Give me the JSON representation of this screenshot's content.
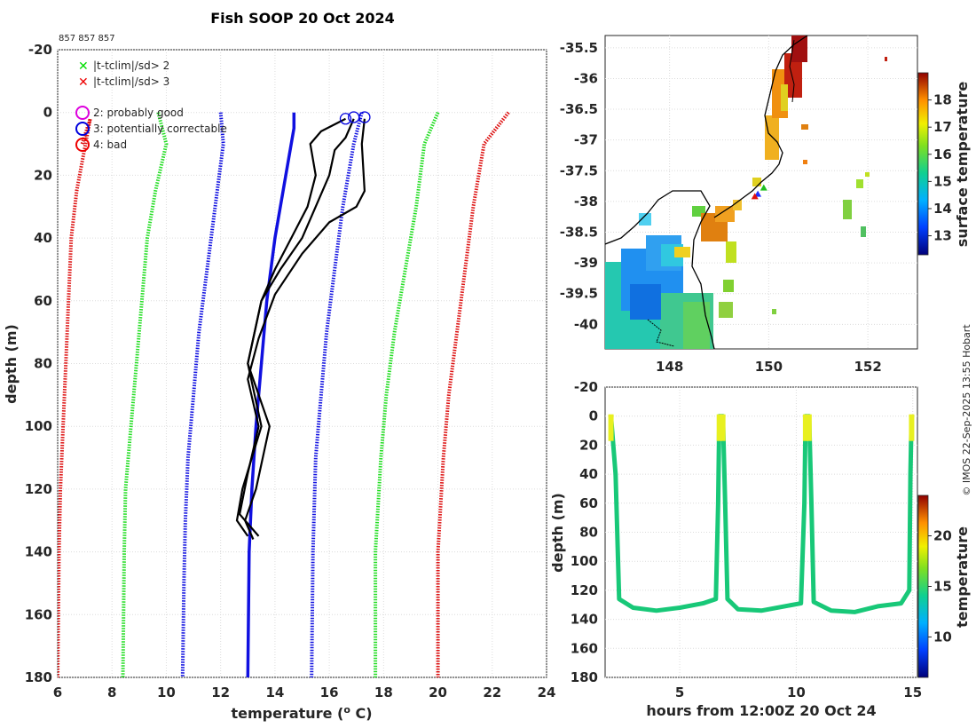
{
  "title": "Fish SOOP 20 Oct 2024",
  "cruise_ids": "857 857 857",
  "credit": "© IMOS 22-Sep-2025 13:55 Hobart",
  "legend": {
    "x_items": [
      {
        "label": "|t-tclim|/sd> 2",
        "color": "#00dd00"
      },
      {
        "label": "|t-tclim|/sd> 3",
        "color": "#ee0000"
      }
    ],
    "o_items": [
      {
        "label": "2: probably good",
        "color": "#dd00dd"
      },
      {
        "label": "3: potentially correctable",
        "color": "#0000dd"
      },
      {
        "label": "4: bad",
        "color": "#ee0000"
      }
    ]
  },
  "colors": {
    "green": "#22dd22",
    "red": "#dd1111",
    "blue": "#1010e0",
    "black": "#000000",
    "grid": "#dcdcdc"
  },
  "chart_data": [
    {
      "type": "line",
      "name": "profile",
      "title": "Fish SOOP 20 Oct 2024",
      "xlabel": "temperature (o C)",
      "ylabel": "depth (m)",
      "xlim": [
        6,
        24
      ],
      "ylim": [
        -20,
        180
      ],
      "y_reversed": true,
      "xticks": [
        6,
        8,
        10,
        12,
        14,
        16,
        18,
        20,
        22,
        24
      ],
      "yticks": [
        -20,
        0,
        20,
        40,
        60,
        80,
        100,
        120,
        140,
        160,
        180
      ],
      "grid": true,
      "series": [
        {
          "name": "clim -3sd",
          "style": "dotted",
          "color": "red",
          "points": [
            [
              6.9,
              10
            ],
            [
              7.2,
              2
            ],
            [
              6.7,
              25
            ],
            [
              6.5,
              40
            ],
            [
              6.4,
              60
            ],
            [
              6.3,
              80
            ],
            [
              6.2,
              100
            ],
            [
              6.1,
              120
            ],
            [
              6.05,
              140
            ],
            [
              6.0,
              180
            ]
          ]
        },
        {
          "name": "clim -2sd",
          "style": "dotted",
          "color": "green",
          "points": [
            [
              9.7,
              0
            ],
            [
              10.0,
              10
            ],
            [
              9.6,
              25
            ],
            [
              9.3,
              40
            ],
            [
              9.1,
              60
            ],
            [
              8.9,
              80
            ],
            [
              8.7,
              100
            ],
            [
              8.5,
              120
            ],
            [
              8.45,
              140
            ],
            [
              8.4,
              180
            ]
          ]
        },
        {
          "name": "clim -1sd",
          "style": "dotted",
          "color": "blue",
          "points": [
            [
              12.0,
              0
            ],
            [
              12.1,
              10
            ],
            [
              11.8,
              30
            ],
            [
              11.5,
              50
            ],
            [
              11.2,
              70
            ],
            [
              11.0,
              90
            ],
            [
              10.8,
              110
            ],
            [
              10.7,
              130
            ],
            [
              10.65,
              150
            ],
            [
              10.6,
              180
            ]
          ]
        },
        {
          "name": "clim mean",
          "style": "solid",
          "color": "blue",
          "points": [
            [
              14.7,
              0
            ],
            [
              14.7,
              5
            ],
            [
              14.4,
              20
            ],
            [
              14.0,
              40
            ],
            [
              13.7,
              60
            ],
            [
              13.5,
              80
            ],
            [
              13.3,
              100
            ],
            [
              13.15,
              120
            ],
            [
              13.05,
              140
            ],
            [
              13.0,
              180
            ]
          ]
        },
        {
          "name": "clim +1sd",
          "style": "dotted",
          "color": "blue",
          "points": [
            [
              17.2,
              0
            ],
            [
              16.9,
              10
            ],
            [
              16.5,
              30
            ],
            [
              16.2,
              50
            ],
            [
              15.9,
              70
            ],
            [
              15.7,
              90
            ],
            [
              15.5,
              110
            ],
            [
              15.4,
              140
            ],
            [
              15.35,
              180
            ]
          ]
        },
        {
          "name": "clim +2sd",
          "style": "dotted",
          "color": "green",
          "points": [
            [
              20.0,
              0
            ],
            [
              19.5,
              10
            ],
            [
              19.2,
              30
            ],
            [
              18.8,
              50
            ],
            [
              18.4,
              70
            ],
            [
              18.1,
              90
            ],
            [
              17.9,
              110
            ],
            [
              17.7,
              140
            ],
            [
              17.7,
              180
            ]
          ]
        },
        {
          "name": "clim +3sd",
          "style": "dotted",
          "color": "red",
          "points": [
            [
              22.6,
              0
            ],
            [
              21.7,
              10
            ],
            [
              21.3,
              30
            ],
            [
              21.0,
              50
            ],
            [
              20.7,
              70
            ],
            [
              20.4,
              90
            ],
            [
              20.2,
              110
            ],
            [
              20.0,
              140
            ],
            [
              20.0,
              180
            ]
          ]
        },
        {
          "name": "cast 1",
          "style": "solid",
          "color": "black",
          "points": [
            [
              16.6,
              2
            ],
            [
              15.7,
              6
            ],
            [
              15.3,
              10
            ],
            [
              15.5,
              20
            ],
            [
              15.2,
              30
            ],
            [
              14.6,
              40
            ],
            [
              14.0,
              50
            ],
            [
              13.5,
              60
            ],
            [
              13.0,
              80
            ],
            [
              13.5,
              100
            ],
            [
              12.8,
              120
            ],
            [
              12.6,
              130
            ],
            [
              13.0,
              135
            ]
          ]
        },
        {
          "name": "cast 2",
          "style": "solid",
          "color": "black",
          "points": [
            [
              16.9,
              2
            ],
            [
              16.6,
              8
            ],
            [
              16.2,
              12
            ],
            [
              16.0,
              20
            ],
            [
              15.5,
              30
            ],
            [
              15.0,
              40
            ],
            [
              14.2,
              50
            ],
            [
              13.5,
              60
            ],
            [
              13.0,
              80
            ],
            [
              13.8,
              100
            ],
            [
              13.3,
              120
            ],
            [
              12.9,
              130
            ],
            [
              13.2,
              136
            ]
          ]
        },
        {
          "name": "cast 3",
          "style": "solid",
          "color": "black",
          "points": [
            [
              17.3,
              2
            ],
            [
              17.2,
              10
            ],
            [
              17.3,
              25
            ],
            [
              17.0,
              30
            ],
            [
              16.0,
              35
            ],
            [
              15.0,
              45
            ],
            [
              14.0,
              58
            ],
            [
              13.4,
              72
            ],
            [
              13.0,
              85
            ],
            [
              13.4,
              100
            ],
            [
              13.0,
              115
            ],
            [
              12.7,
              128
            ],
            [
              13.4,
              135
            ]
          ]
        }
      ],
      "qc_markers": [
        {
          "x": 16.6,
          "y": 2,
          "flag": 3
        },
        {
          "x": 16.9,
          "y": 1.5,
          "flag": 3
        },
        {
          "x": 17.3,
          "y": 1.5,
          "flag": 3
        }
      ]
    },
    {
      "type": "heatmap",
      "name": "map",
      "xlim": [
        146.7,
        153.0
      ],
      "ylim": [
        -40.4,
        -35.3
      ],
      "xticks": [
        148,
        150,
        152
      ],
      "yticks": [
        -35.5,
        -36,
        -36.5,
        -37,
        -37.5,
        -38,
        -38.5,
        -39,
        -39.5,
        -40
      ],
      "colorbar": {
        "label": "surface temperature",
        "range": [
          12.3,
          19.0
        ],
        "ticks": [
          13,
          14,
          15,
          16,
          17,
          18
        ]
      },
      "track_points": [
        [
          149.9,
          -37.78
        ],
        [
          149.78,
          -37.88
        ],
        [
          149.72,
          -37.92
        ]
      ]
    },
    {
      "type": "scatter",
      "name": "time-depth",
      "xlabel": "hours from 12:00Z 20 Oct 24",
      "ylabel": "depth (m)",
      "xlim": [
        1.8,
        15.2
      ],
      "ylim": [
        -20,
        180
      ],
      "y_reversed": true,
      "xticks": [
        5,
        10,
        15
      ],
      "yticks": [
        -20,
        0,
        20,
        40,
        60,
        80,
        100,
        120,
        140,
        160,
        180
      ],
      "grid": true,
      "colorbar": {
        "label": "temperature",
        "range": [
          6,
          24
        ],
        "ticks": [
          10,
          15,
          20
        ]
      },
      "track": [
        [
          2.05,
          0
        ],
        [
          2.25,
          40
        ],
        [
          2.4,
          126
        ],
        [
          3,
          132
        ],
        [
          4,
          134
        ],
        [
          5,
          132
        ],
        [
          6,
          129
        ],
        [
          6.55,
          126
        ],
        [
          6.65,
          60
        ],
        [
          6.7,
          0
        ],
        [
          6.85,
          0
        ],
        [
          6.95,
          60
        ],
        [
          7.05,
          126
        ],
        [
          7.5,
          133
        ],
        [
          8.5,
          134
        ],
        [
          9.5,
          131
        ],
        [
          10.2,
          129
        ],
        [
          10.35,
          60
        ],
        [
          10.4,
          0
        ],
        [
          10.55,
          0
        ],
        [
          10.65,
          60
        ],
        [
          10.75,
          128
        ],
        [
          11.5,
          134
        ],
        [
          12.5,
          135
        ],
        [
          13.5,
          131
        ],
        [
          14.5,
          129
        ],
        [
          14.85,
          120
        ],
        [
          14.9,
          40
        ],
        [
          14.95,
          0
        ]
      ]
    }
  ]
}
